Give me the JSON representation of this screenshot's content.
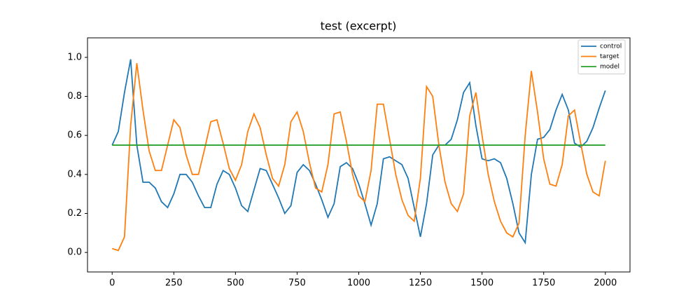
{
  "chart_data": {
    "type": "line",
    "title": "test (excerpt)",
    "x": [
      0,
      25,
      50,
      75,
      100,
      125,
      150,
      175,
      200,
      225,
      250,
      275,
      300,
      325,
      350,
      375,
      400,
      425,
      450,
      475,
      500,
      525,
      550,
      575,
      600,
      625,
      650,
      675,
      700,
      725,
      750,
      775,
      800,
      825,
      850,
      875,
      900,
      925,
      950,
      975,
      1000,
      1025,
      1050,
      1075,
      1100,
      1125,
      1150,
      1175,
      1200,
      1225,
      1250,
      1275,
      1300,
      1325,
      1350,
      1375,
      1400,
      1425,
      1450,
      1475,
      1500,
      1525,
      1550,
      1575,
      1600,
      1625,
      1650,
      1675,
      1700,
      1725,
      1750,
      1775,
      1800,
      1825,
      1850,
      1875,
      1900,
      1925,
      1950,
      1975,
      2000
    ],
    "series": [
      {
        "name": "control",
        "color": "#1f77b4",
        "values": [
          0.55,
          0.62,
          0.82,
          0.99,
          0.55,
          0.36,
          0.36,
          0.33,
          0.26,
          0.23,
          0.3,
          0.4,
          0.4,
          0.36,
          0.29,
          0.23,
          0.23,
          0.35,
          0.42,
          0.4,
          0.33,
          0.24,
          0.21,
          0.32,
          0.43,
          0.42,
          0.35,
          0.28,
          0.2,
          0.24,
          0.41,
          0.45,
          0.42,
          0.35,
          0.27,
          0.18,
          0.25,
          0.44,
          0.46,
          0.43,
          0.35,
          0.25,
          0.14,
          0.25,
          0.48,
          0.49,
          0.47,
          0.45,
          0.38,
          0.23,
          0.08,
          0.25,
          0.5,
          0.55,
          0.55,
          0.58,
          0.68,
          0.82,
          0.87,
          0.65,
          0.48,
          0.47,
          0.48,
          0.46,
          0.38,
          0.25,
          0.1,
          0.05,
          0.4,
          0.58,
          0.59,
          0.63,
          0.73,
          0.81,
          0.73,
          0.56,
          0.54,
          0.57,
          0.64,
          0.74,
          0.83
        ]
      },
      {
        "name": "target",
        "color": "#ff7f0e",
        "values": [
          0.02,
          0.01,
          0.08,
          0.65,
          0.97,
          0.73,
          0.52,
          0.42,
          0.42,
          0.55,
          0.68,
          0.64,
          0.5,
          0.4,
          0.4,
          0.53,
          0.67,
          0.68,
          0.56,
          0.43,
          0.37,
          0.45,
          0.62,
          0.71,
          0.64,
          0.5,
          0.38,
          0.34,
          0.45,
          0.67,
          0.72,
          0.62,
          0.46,
          0.33,
          0.31,
          0.45,
          0.71,
          0.72,
          0.57,
          0.4,
          0.29,
          0.26,
          0.42,
          0.76,
          0.76,
          0.58,
          0.4,
          0.27,
          0.19,
          0.16,
          0.38,
          0.85,
          0.8,
          0.55,
          0.36,
          0.25,
          0.21,
          0.3,
          0.7,
          0.82,
          0.6,
          0.4,
          0.26,
          0.16,
          0.1,
          0.08,
          0.15,
          0.6,
          0.93,
          0.72,
          0.48,
          0.35,
          0.34,
          0.45,
          0.7,
          0.73,
          0.56,
          0.4,
          0.31,
          0.29,
          0.47
        ]
      },
      {
        "name": "model",
        "color": "#2ca02c",
        "x": [
          0,
          2000
        ],
        "values": [
          0.55,
          0.55
        ]
      }
    ],
    "xlim": [
      -100,
      2100
    ],
    "ylim": [
      -0.1,
      1.1
    ],
    "xticks": [
      0,
      250,
      500,
      750,
      1000,
      1250,
      1500,
      1750,
      2000
    ],
    "yticks": [
      {
        "value": 0,
        "label": "0.0"
      },
      0.2,
      0.4,
      0.6,
      0.8,
      {
        "value": 1,
        "label": "1.0"
      }
    ],
    "legend": "upper right"
  }
}
